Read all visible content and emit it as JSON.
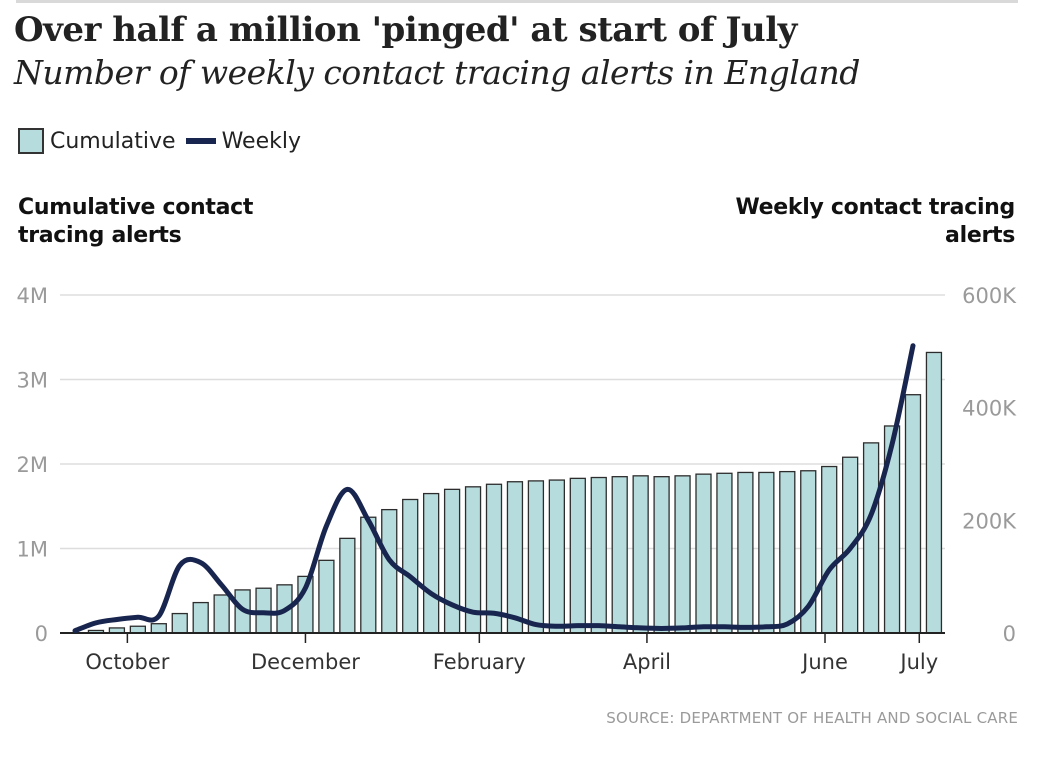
{
  "header": {
    "title": "Over half a million 'pinged' at start of July",
    "subtitle": "Number of weekly contact tracing alerts in England"
  },
  "legend": {
    "cumulative_label": "Cumulative",
    "weekly_label": "Weekly"
  },
  "axis_titles": {
    "left": "Cumulative contact tracing alerts",
    "right": "Weekly contact tracing alerts"
  },
  "source": "SOURCE: DEPARTMENT OF HEALTH AND SOCIAL CARE",
  "colors": {
    "bar_fill": "#b7dcdd",
    "bar_stroke": "#2d2d2d",
    "line": "#18254e",
    "grid": "#dddddd",
    "tick_text": "#9a9a9a",
    "axis_text": "#333333"
  },
  "chart_data": {
    "type": "bar+line",
    "title": "Over half a million 'pinged' at start of July",
    "subtitle": "Number of weekly contact tracing alerts in England",
    "x_tick_labels": [
      {
        "label": "October",
        "week_index": 2.5
      },
      {
        "label": "December",
        "week_index": 11
      },
      {
        "label": "February",
        "week_index": 19.3
      },
      {
        "label": "April",
        "week_index": 27.3
      },
      {
        "label": "June",
        "week_index": 35.8
      },
      {
        "label": "July",
        "week_index": 40.3
      }
    ],
    "left_axis": {
      "label": "Cumulative contact tracing alerts",
      "min": 0,
      "max": 4000000,
      "ticks": [
        0,
        1000000,
        2000000,
        3000000,
        4000000
      ],
      "tick_labels": [
        "0",
        "1M",
        "2M",
        "3M",
        "4M"
      ]
    },
    "right_axis": {
      "label": "Weekly contact tracing alerts",
      "min": 0,
      "max": 600000,
      "ticks": [
        0,
        200000,
        400000,
        600000
      ],
      "tick_labels": [
        "0",
        "200K",
        "400K",
        "600K"
      ]
    },
    "grid": true,
    "series": [
      {
        "name": "Cumulative",
        "type": "bar",
        "axis": "left",
        "values": [
          0,
          30000,
          60000,
          80000,
          110000,
          230000,
          360000,
          450000,
          510000,
          530000,
          570000,
          670000,
          860000,
          1120000,
          1370000,
          1460000,
          1580000,
          1650000,
          1700000,
          1730000,
          1760000,
          1790000,
          1800000,
          1810000,
          1830000,
          1840000,
          1850000,
          1860000,
          1850000,
          1860000,
          1880000,
          1890000,
          1900000,
          1900000,
          1910000,
          1920000,
          1970000,
          2080000,
          2250000,
          2450000,
          2820000,
          3320000
        ]
      },
      {
        "name": "Weekly",
        "type": "line",
        "axis": "right",
        "values": [
          4000,
          18000,
          24000,
          28000,
          30000,
          120000,
          125000,
          85000,
          42000,
          36000,
          40000,
          80000,
          190000,
          255000,
          200000,
          130000,
          100000,
          70000,
          50000,
          37000,
          35000,
          27000,
          15000,
          12000,
          13000,
          13000,
          11000,
          9000,
          8000,
          9000,
          11000,
          11000,
          10000,
          11000,
          16000,
          47000,
          112000,
          150000,
          210000,
          335000,
          510000
        ]
      }
    ]
  }
}
